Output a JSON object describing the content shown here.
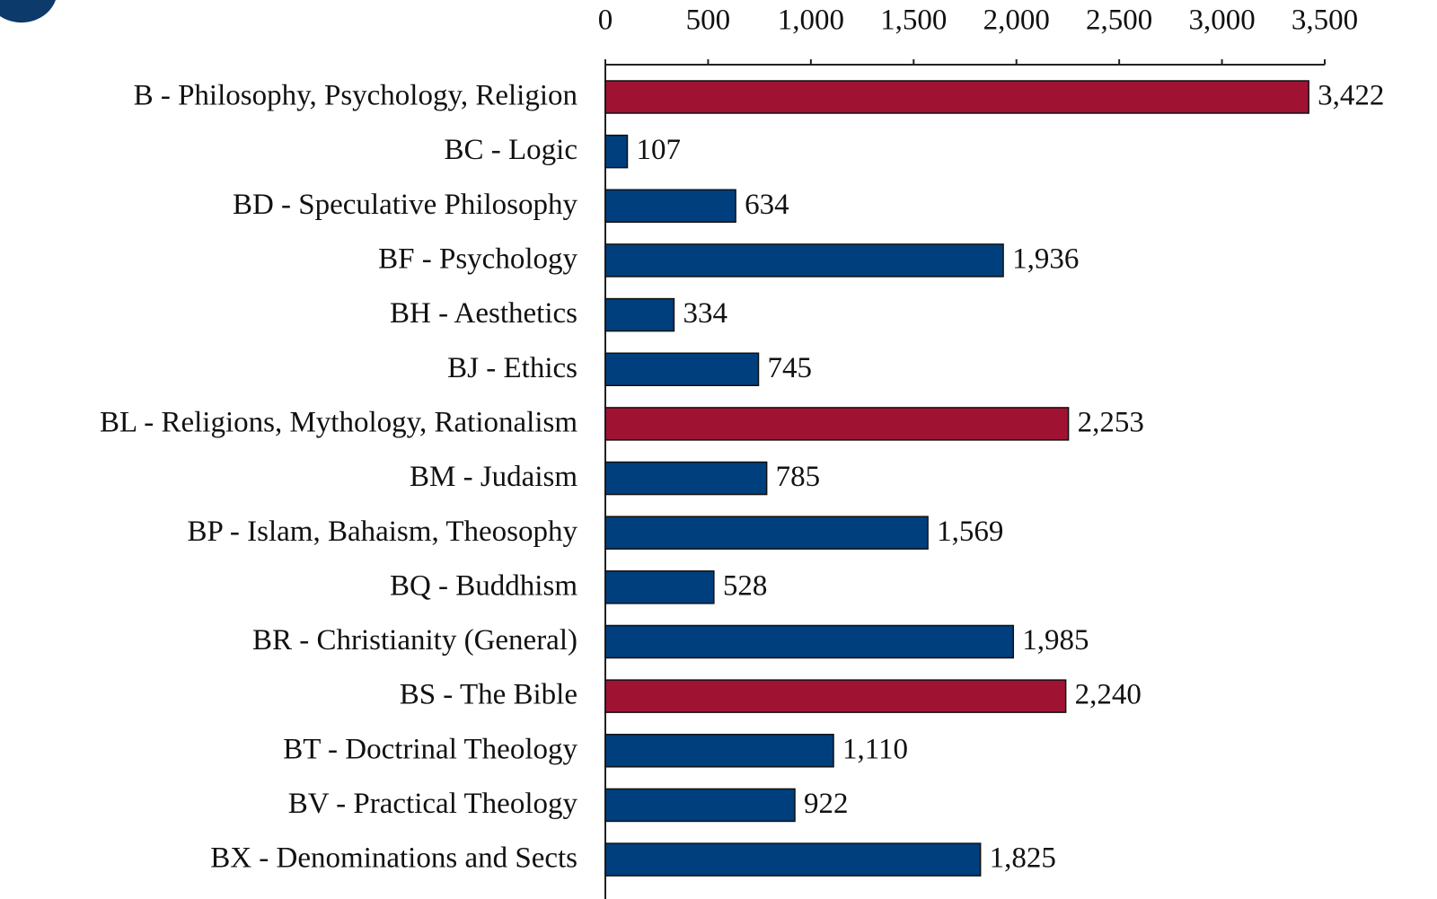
{
  "chart_data": {
    "type": "bar",
    "orientation": "horizontal",
    "categories": [
      "B - Philosophy, Psychology, Religion",
      "BC - Logic",
      "BD - Speculative Philosophy",
      "BF - Psychology",
      "BH - Aesthetics",
      "BJ - Ethics",
      "BL - Religions, Mythology, Rationalism",
      "BM - Judaism",
      "BP - Islam, Bahaism, Theosophy",
      "BQ - Buddhism",
      "BR - Christianity (General)",
      "BS - The Bible",
      "BT - Doctrinal Theology",
      "BV - Practical Theology",
      "BX - Denominations and Sects"
    ],
    "values": [
      3422,
      107,
      634,
      1936,
      334,
      745,
      2253,
      785,
      1569,
      528,
      1985,
      2240,
      1110,
      922,
      1825
    ],
    "value_labels": [
      "3,422",
      "107",
      "634",
      "1,936",
      "334",
      "745",
      "2,253",
      "785",
      "1,569",
      "528",
      "1,985",
      "2,240",
      "1,110",
      "922",
      "1,825"
    ],
    "colors": [
      "#a01232",
      "#003f7d",
      "#003f7d",
      "#003f7d",
      "#003f7d",
      "#003f7d",
      "#a01232",
      "#003f7d",
      "#003f7d",
      "#003f7d",
      "#003f7d",
      "#a01232",
      "#003f7d",
      "#003f7d",
      "#003f7d"
    ],
    "xlim": [
      0,
      3500
    ],
    "xticks": [
      0,
      500,
      {
        "value": 1000,
        "label": "1,000"
      },
      {
        "value": 1500,
        "label": "1,500"
      },
      {
        "value": 2000,
        "label": "2,000"
      },
      {
        "value": 2500,
        "label": "2,500"
      },
      {
        "value": 3000,
        "label": "3,000"
      },
      {
        "value": 3500,
        "label": "3,500"
      }
    ],
    "grid": false
  }
}
